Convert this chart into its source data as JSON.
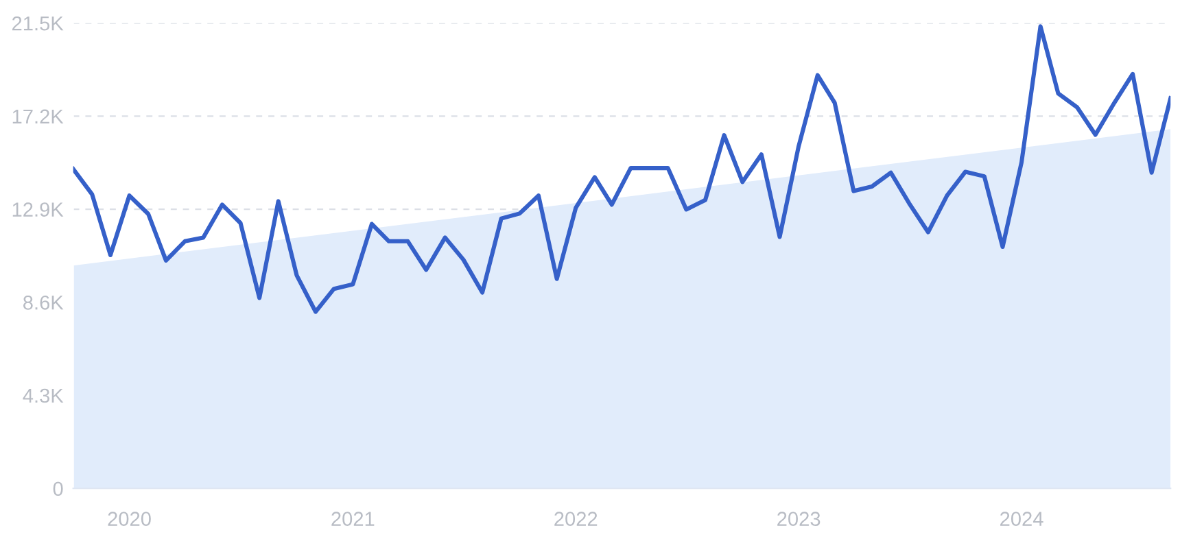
{
  "chart_data": {
    "type": "line",
    "x": [
      "2019-10",
      "2019-11",
      "2019-12",
      "2020-01",
      "2020-02",
      "2020-03",
      "2020-04",
      "2020-05",
      "2020-06",
      "2020-07",
      "2020-08",
      "2020-09",
      "2020-10",
      "2020-11",
      "2020-12",
      "2021-01",
      "2021-02",
      "2021-03",
      "2021-04",
      "2021-05",
      "2021-06",
      "2021-07",
      "2021-08",
      "2021-09",
      "2021-10",
      "2021-11",
      "2021-12",
      "2022-01",
      "2022-02",
      "2022-03",
      "2022-04",
      "2022-05",
      "2022-06",
      "2022-07",
      "2022-08",
      "2022-09",
      "2022-10",
      "2022-11",
      "2022-12",
      "2023-01",
      "2023-02",
      "2023-03",
      "2023-04",
      "2023-05",
      "2023-06",
      "2023-07",
      "2023-08",
      "2023-09",
      "2023-10",
      "2023-11",
      "2023-12",
      "2024-01",
      "2024-02",
      "2024-03",
      "2024-04",
      "2024-05",
      "2024-06",
      "2024-07",
      "2024-08",
      "2024-09"
    ],
    "series": [
      {
        "type": "area",
        "color": "#e1ecfb",
        "x": [
          "2019-10",
          "2024-09"
        ],
        "values": [
          10300,
          16600
        ]
      },
      {
        "color": "#3560c9",
        "values": [
          14760,
          13590,
          10780,
          13530,
          12680,
          10530,
          11420,
          11590,
          13110,
          12260,
          8800,
          13270,
          9850,
          8160,
          9220,
          9430,
          12220,
          11420,
          11420,
          10100,
          11590,
          10570,
          9050,
          12470,
          12700,
          13530,
          9680,
          12960,
          14380,
          13110,
          14800,
          14800,
          14800,
          12890,
          13320,
          16320,
          14160,
          15430,
          11620,
          15810,
          19090,
          17820,
          13740,
          13950,
          14590,
          13170,
          11840,
          13530,
          14630,
          14420,
          11160,
          15070,
          21350,
          18250,
          17610,
          16340,
          17820,
          19150,
          14590,
          18030
        ]
      }
    ],
    "xlim": [
      "2019-10",
      "2024-09"
    ],
    "xticks": [
      "2020",
      "2021",
      "2022",
      "2023",
      "2024"
    ],
    "ylim": [
      0,
      21500
    ],
    "yticks": [
      0,
      {
        "value": 4300,
        "label": "4.3K"
      },
      {
        "value": 8600,
        "label": "8.6K"
      },
      {
        "value": 12900,
        "label": "12.9K"
      },
      {
        "value": 17200,
        "label": "17.2K"
      },
      {
        "value": 21500,
        "label": "21.5K"
      }
    ],
    "grid": "y",
    "line_style": "solid",
    "marker": "none"
  }
}
